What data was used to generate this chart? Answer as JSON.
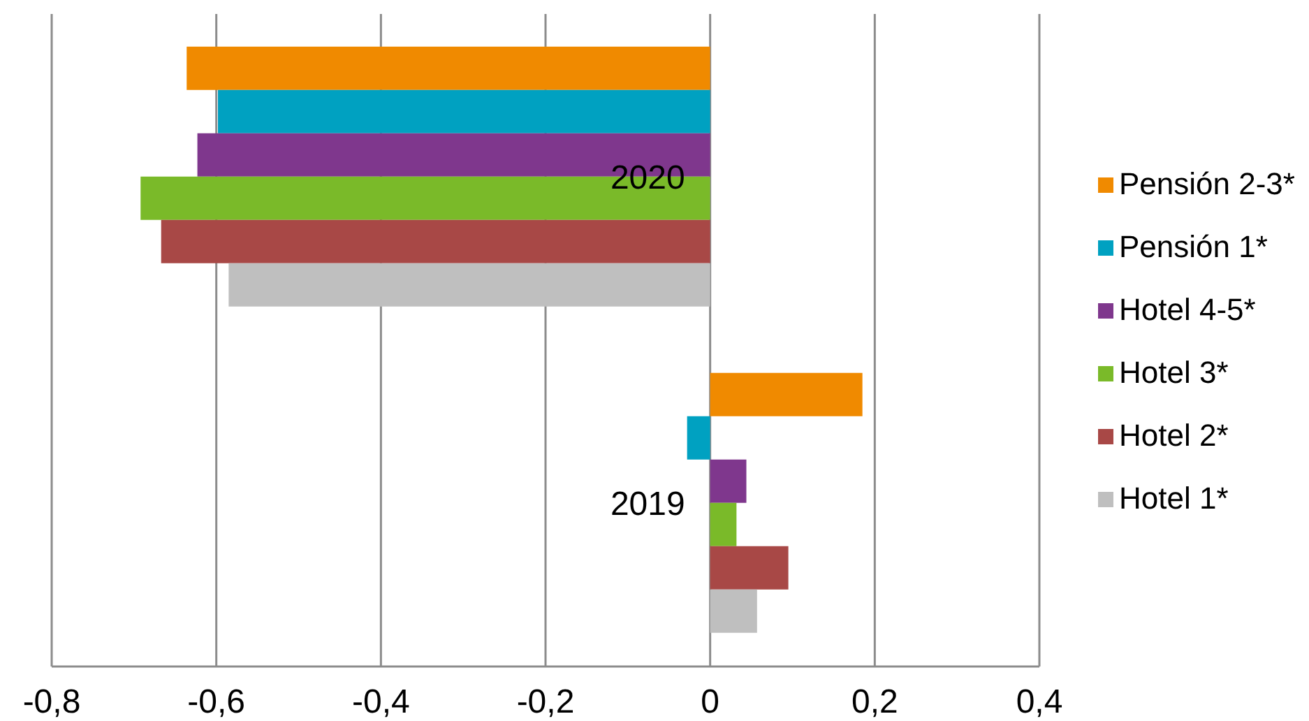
{
  "chart_data": {
    "type": "bar",
    "orientation": "horizontal",
    "categories": [
      "2020",
      "2019"
    ],
    "series": [
      {
        "name": "Pensión 2-3*",
        "color": "#f08a00",
        "values": [
          -0.636,
          0.185
        ]
      },
      {
        "name": "Pensión 1*",
        "color": "#00a1c1",
        "values": [
          -0.598,
          -0.028
        ]
      },
      {
        "name": "Hotel 4-5*",
        "color": "#7f378d",
        "values": [
          -0.623,
          0.044
        ]
      },
      {
        "name": "Hotel 3*",
        "color": "#7aba29",
        "values": [
          -0.692,
          0.032
        ]
      },
      {
        "name": "Hotel 2*",
        "color": "#a84846",
        "values": [
          -0.667,
          0.095
        ]
      },
      {
        "name": "Hotel 1*",
        "color": "#bfbfbf",
        "values": [
          -0.585,
          0.057
        ]
      }
    ],
    "xlim": [
      -0.8,
      0.4
    ],
    "xticks": [
      {
        "value": -0.8,
        "label": "-0,8"
      },
      {
        "value": -0.6,
        "label": "-0,6"
      },
      {
        "value": -0.4,
        "label": "-0,4"
      },
      {
        "value": -0.2,
        "label": "-0,2"
      },
      0,
      {
        "value": 0.2,
        "label": "0,2"
      },
      {
        "value": 0.4,
        "label": "0,4"
      }
    ],
    "grid": "x",
    "legend": "right"
  }
}
